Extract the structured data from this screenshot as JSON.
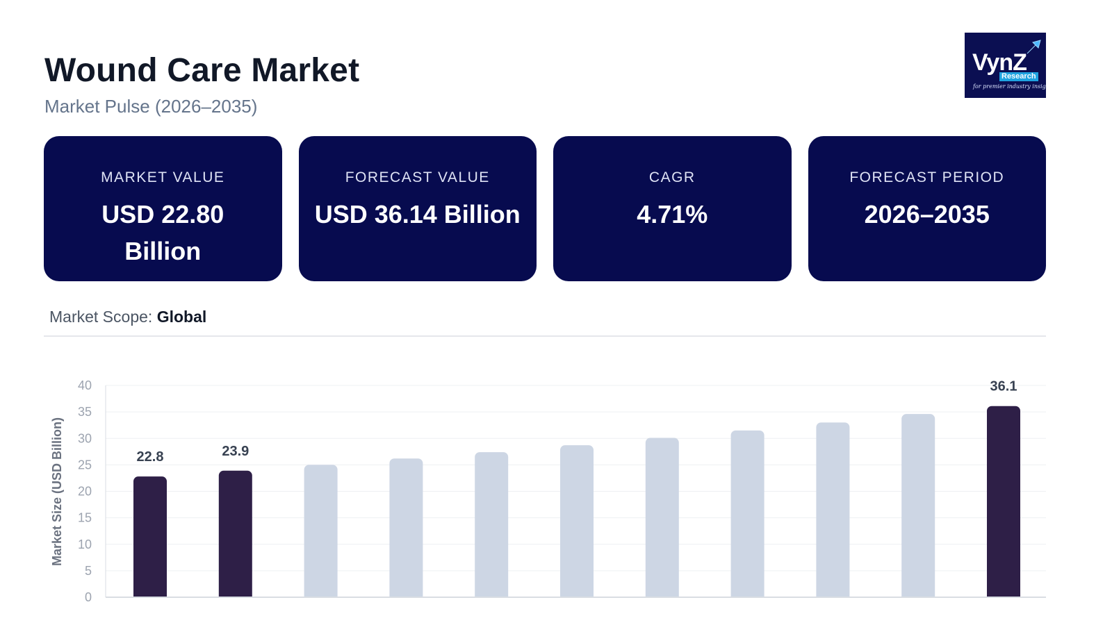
{
  "header": {
    "title": "Wound Care Market",
    "subtitle": "Market Pulse (2026–2035)"
  },
  "logo": {
    "word": "VynZ",
    "badge": "Research",
    "tagline": "for premier industry insights"
  },
  "cards": [
    {
      "label": "MARKET VALUE",
      "value": "USD 22.80 Billion"
    },
    {
      "label": "FORECAST VALUE",
      "value": "USD 36.14 Billion"
    },
    {
      "label": "CAGR",
      "value": "4.71%"
    },
    {
      "label": "FORECAST PERIOD",
      "value": "2026–2035"
    }
  ],
  "scope": {
    "label": "Market Scope:",
    "value": "Global"
  },
  "colors": {
    "card_bg": "#070b4f",
    "bar_highlight": "#2e1f47",
    "bar_muted": "#cdd6e4",
    "grid": "#eef0f3"
  },
  "chart_data": {
    "type": "bar",
    "ylabel": "Market Size (USD Billion)",
    "ylim": [
      0,
      40
    ],
    "yticks": [
      0,
      5,
      10,
      15,
      20,
      25,
      30,
      35,
      40
    ],
    "grid": true,
    "values": [
      22.8,
      23.9,
      25.0,
      26.2,
      27.4,
      28.7,
      30.1,
      31.5,
      33.0,
      34.6,
      36.1
    ],
    "highlighted": [
      true,
      true,
      false,
      false,
      false,
      false,
      false,
      false,
      false,
      false,
      true
    ],
    "data_labels": [
      "22.8",
      "23.9",
      "",
      "",
      "",
      "",
      "",
      "",
      "",
      "",
      "36.1"
    ]
  }
}
